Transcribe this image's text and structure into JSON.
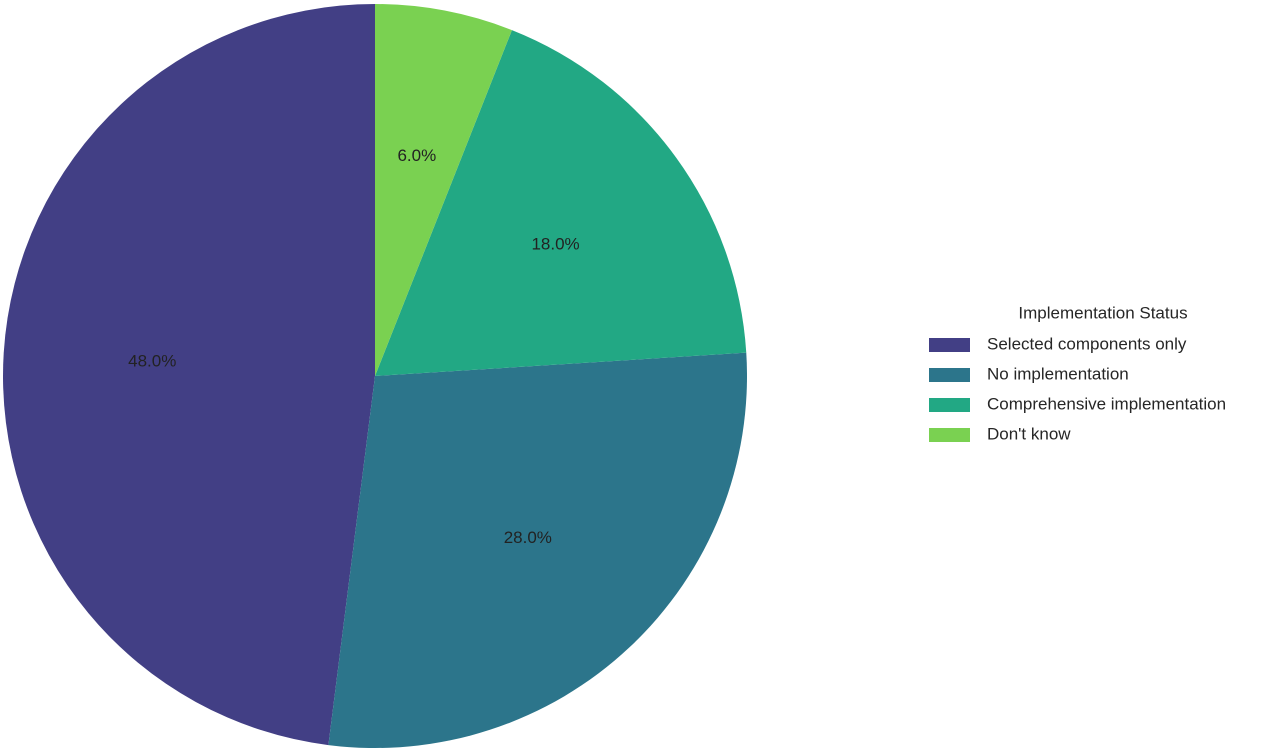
{
  "chart_data": {
    "type": "pie",
    "legend_title": "Implementation Status",
    "categories": [
      "Selected components only",
      "No implementation",
      "Comprehensive implementation",
      "Don't know"
    ],
    "values": [
      48,
      28,
      18,
      6
    ],
    "value_labels": [
      "48.0%",
      "28.0%",
      "18.0%",
      "6.0%"
    ],
    "colors": [
      "#423f85",
      "#2c758b",
      "#22a884",
      "#7ad151"
    ],
    "legend": "right"
  }
}
